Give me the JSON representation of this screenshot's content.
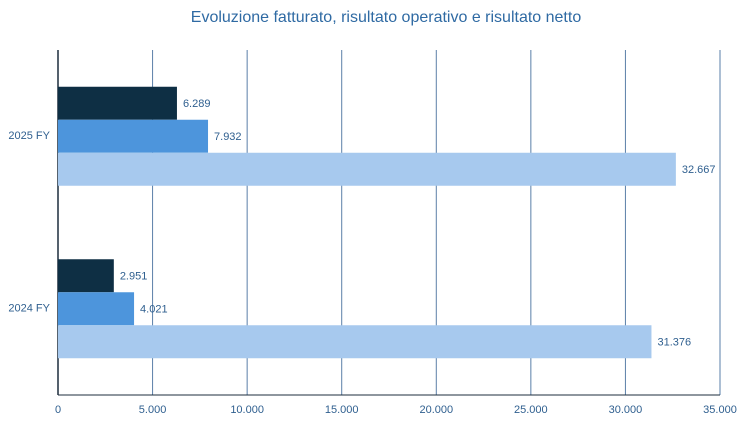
{
  "chart_data": {
    "type": "hbar",
    "title": "Evoluzione fatturato, risultato operativo e risultato netto",
    "categories": [
      "2025 FY",
      "2024 FY"
    ],
    "series": [
      {
        "color": "#0e2f44",
        "values": [
          6289,
          2951
        ],
        "value_labels": [
          "6.289",
          "2.951"
        ]
      },
      {
        "color": "#4d95dc",
        "values": [
          7932,
          4021
        ],
        "value_labels": [
          "7.932",
          "4.021"
        ]
      },
      {
        "color": "#a7c9ee",
        "values": [
          32667,
          31376
        ],
        "value_labels": [
          "32.667",
          "31.376"
        ]
      }
    ],
    "xlim": [
      0,
      35000
    ],
    "xticks": [
      0,
      {
        "value": 5000,
        "label": "5.000"
      },
      {
        "value": 10000,
        "label": "10.000"
      },
      {
        "value": 15000,
        "label": "15.000"
      },
      {
        "value": 20000,
        "label": "20.000"
      },
      {
        "value": 25000,
        "label": "25.000"
      },
      {
        "value": 30000,
        "label": "30.000"
      },
      {
        "value": 35000,
        "label": "35.000"
      }
    ],
    "grid": true
  }
}
